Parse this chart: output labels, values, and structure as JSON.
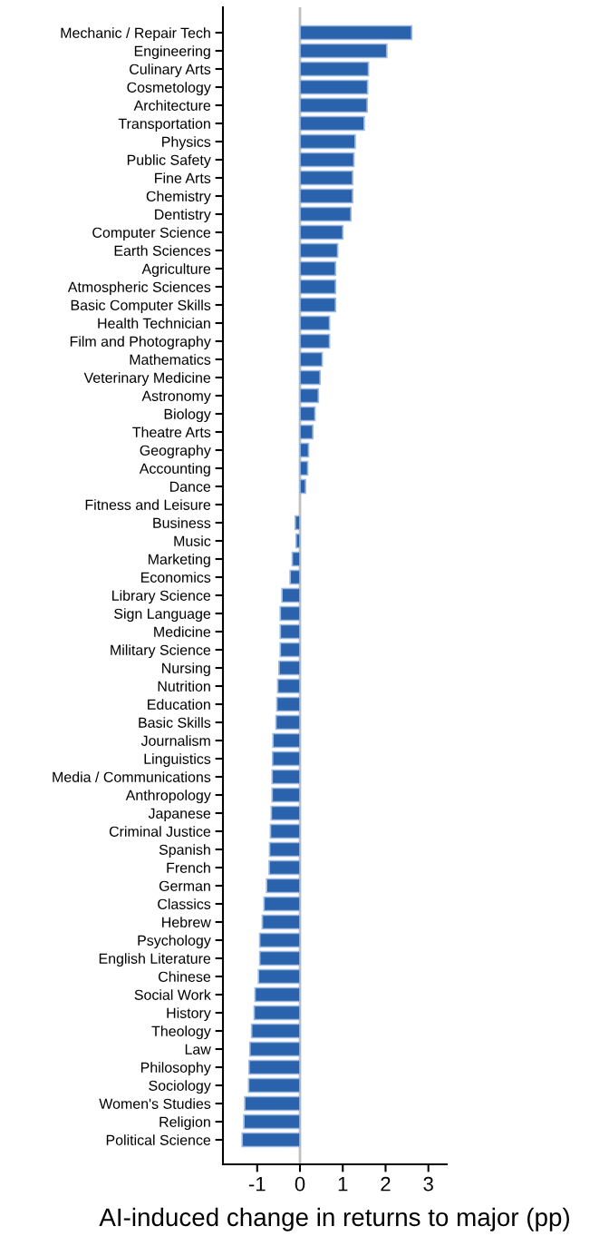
{
  "chart_data": {
    "type": "bar",
    "orientation": "horizontal",
    "xlabel": "AI-induced change in returns to major (pp)",
    "categories": [
      "Mechanic / Repair Tech",
      "Engineering",
      "Culinary Arts",
      "Cosmetology",
      "Architecture",
      "Transportation",
      "Physics",
      "Public Safety",
      "Fine Arts",
      "Chemistry",
      "Dentistry",
      "Computer Science",
      "Earth Sciences",
      "Agriculture",
      "Atmospheric Sciences",
      "Basic Computer Skills",
      "Health Technician",
      "Film and Photography",
      "Mathematics",
      "Veterinary Medicine",
      "Astronomy",
      "Biology",
      "Theatre Arts",
      "Geography",
      "Accounting",
      "Dance",
      "Fitness and Leisure",
      "Business",
      "Music",
      "Marketing",
      "Economics",
      "Library Science",
      "Sign Language",
      "Medicine",
      "Military Science",
      "Nursing",
      "Nutrition",
      "Education",
      "Basic Skills",
      "Journalism",
      "Linguistics",
      "Media / Communications",
      "Anthropology",
      "Japanese",
      "Criminal Justice",
      "Spanish",
      "French",
      "German",
      "Classics",
      "Hebrew",
      "Psychology",
      "English Literature",
      "Chinese",
      "Social Work",
      "History",
      "Theology",
      "Law",
      "Philosophy",
      "Sociology",
      "Women's Studies",
      "Religion",
      "Political Science"
    ],
    "values": [
      2.61,
      2.03,
      1.6,
      1.58,
      1.57,
      1.5,
      1.29,
      1.26,
      1.23,
      1.23,
      1.19,
      1.0,
      0.88,
      0.83,
      0.83,
      0.83,
      0.69,
      0.69,
      0.52,
      0.47,
      0.43,
      0.35,
      0.3,
      0.2,
      0.18,
      0.13,
      0.0,
      -0.11,
      -0.09,
      -0.18,
      -0.23,
      -0.42,
      -0.46,
      -0.46,
      -0.46,
      -0.49,
      -0.52,
      -0.54,
      -0.56,
      -0.63,
      -0.64,
      -0.65,
      -0.65,
      -0.67,
      -0.69,
      -0.71,
      -0.72,
      -0.78,
      -0.84,
      -0.88,
      -0.94,
      -0.94,
      -0.97,
      -1.05,
      -1.07,
      -1.13,
      -1.17,
      -1.19,
      -1.2,
      -1.29,
      -1.31,
      -1.35
    ],
    "color": "#2a63ac",
    "xlim": [
      -1.8,
      3.43
    ],
    "xticks": [
      {
        "value": -1,
        "label": "-1"
      },
      0,
      1,
      2,
      3
    ],
    "ref_lines": [
      {
        "axis": "x",
        "value": 0,
        "color": "#c0c0c0"
      }
    ],
    "grid": false
  }
}
